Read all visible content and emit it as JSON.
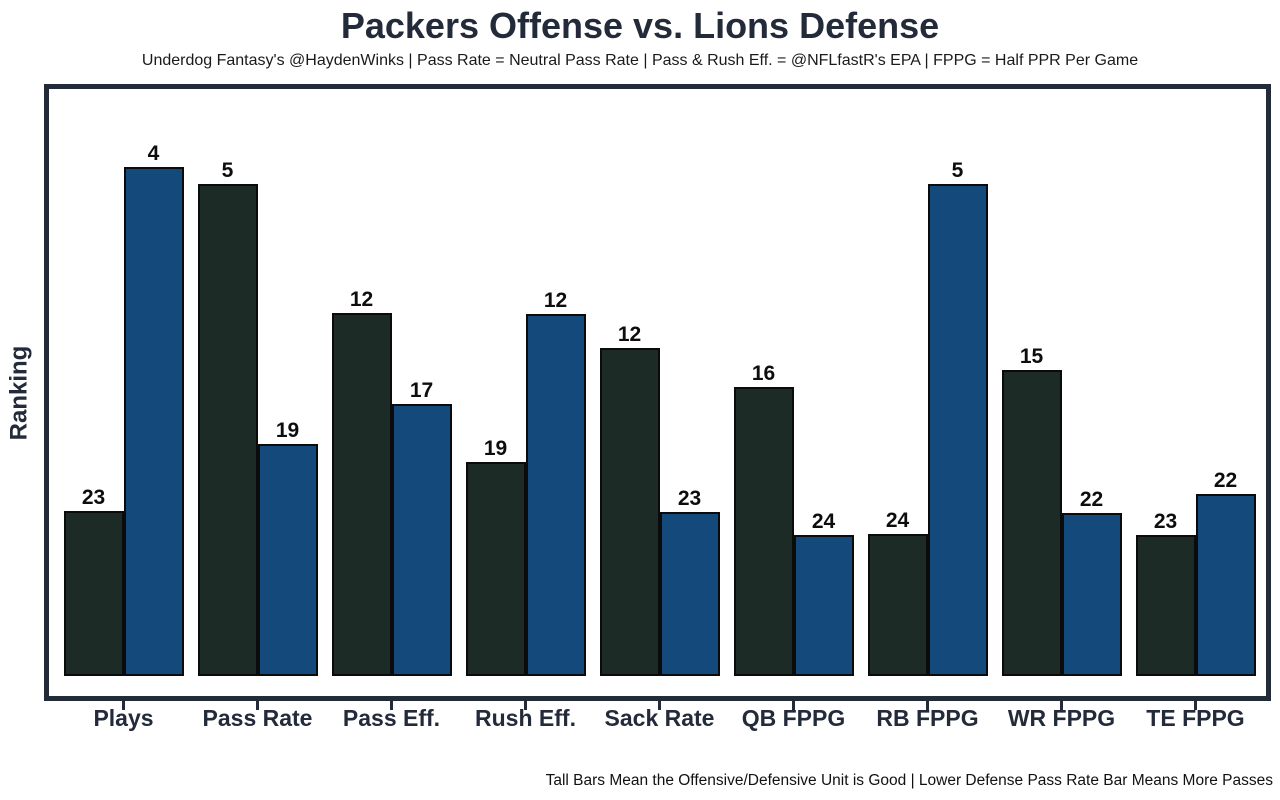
{
  "header": {
    "title": "Packers Offense vs. Lions Defense",
    "subtitle": "Underdog Fantasy's @HaydenWinks | Pass Rate = Neutral Pass Rate | Pass & Rush Eff. = @NFLfastR's EPA | FPPG = Half PPR Per Game"
  },
  "footnote": "Tall Bars Mean the Offensive/Defensive Unit is Good | Lower Defense Pass Rate Bar Means More Passes",
  "colors": {
    "offense_bar": "#1C2B25",
    "defense_bar": "#14497B",
    "bar_outline": "#0B0B0B",
    "frame": "#232A38",
    "axis_text": "#232A3A",
    "rank_label_text": "#0D0D0D"
  },
  "chart_data": {
    "type": "bar",
    "title": "Packers Offense vs. Lions Defense",
    "xlabel": "",
    "ylabel": "Ranking",
    "categories": [
      "Plays",
      "Pass Rate",
      "Pass Eff.",
      "Rush Eff.",
      "Sack Rate",
      "QB FPPG",
      "RB FPPG",
      "WR FPPG",
      "TE FPPG"
    ],
    "series": [
      {
        "name": "Packers Offense",
        "color": "#1C2B25",
        "rank_labels": [
          23,
          5,
          12,
          19,
          12,
          16,
          24,
          15,
          23
        ],
        "bar_height_pct": [
          28.1,
          83.9,
          61.8,
          36.4,
          55.8,
          49.2,
          24.2,
          52.1,
          24.0
        ]
      },
      {
        "name": "Lions Defense",
        "color": "#14497B",
        "rank_labels": [
          4,
          19,
          17,
          12,
          23,
          24,
          5,
          22,
          22
        ],
        "bar_height_pct": [
          86.7,
          39.5,
          46.3,
          61.6,
          27.9,
          24.0,
          83.9,
          27.7,
          31.0
        ]
      }
    ],
    "legend": "none",
    "grid": false,
    "annotation": "Tall Bars Mean the Offensive/Defensive Unit is Good | Lower Defense Pass Rate Bar Means More Passes"
  },
  "layout": {
    "group_left_start": 14,
    "group_pitch": 134,
    "group_width": 121
  }
}
